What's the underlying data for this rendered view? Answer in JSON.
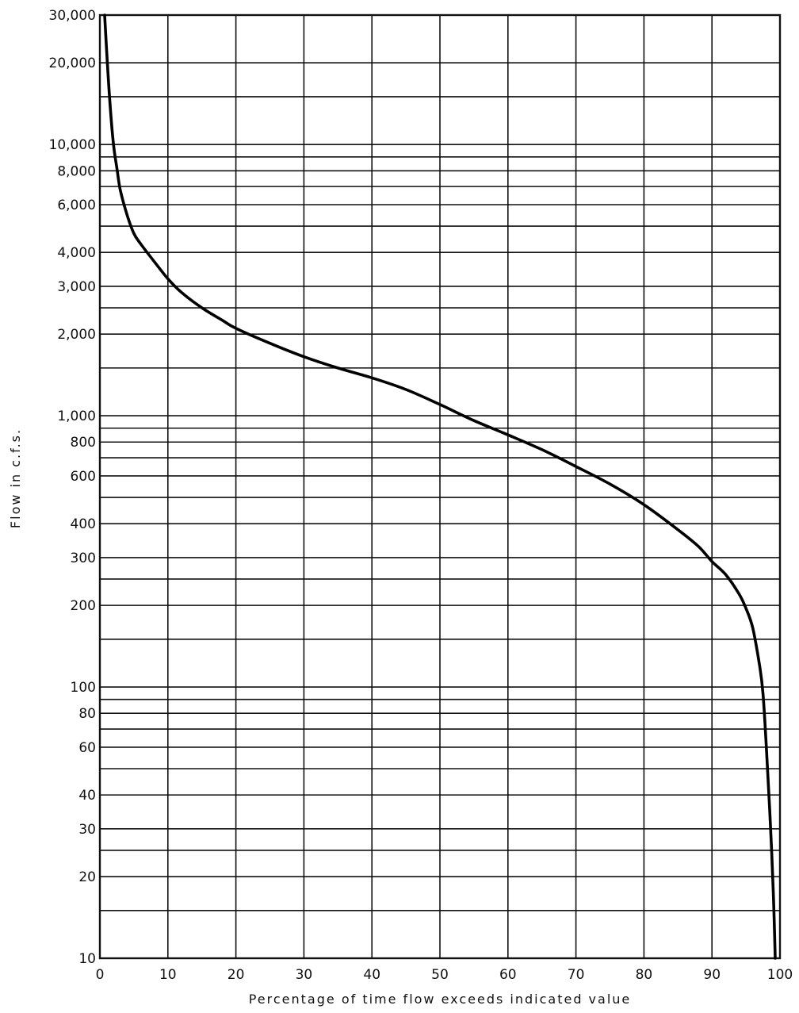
{
  "chart_data": {
    "type": "line",
    "title": "",
    "xlabel": "Percentage of time flow exceeds indicated value",
    "ylabel": "Flow in c.f.s.",
    "x_scale": "linear",
    "y_scale": "log",
    "xlim": [
      0,
      100
    ],
    "ylim": [
      10,
      30000
    ],
    "grid": true,
    "x_ticks": [
      0,
      10,
      20,
      30,
      40,
      50,
      60,
      70,
      80,
      90,
      100
    ],
    "x_tick_labels": [
      "0",
      "10",
      "20",
      "30",
      "40",
      "50",
      "60",
      "70",
      "80",
      "90",
      "100"
    ],
    "y_ticks": [
      10,
      20,
      30,
      40,
      60,
      80,
      100,
      200,
      300,
      400,
      600,
      800,
      1000,
      2000,
      3000,
      4000,
      6000,
      8000,
      10000,
      20000,
      30000
    ],
    "y_tick_labels": [
      "10",
      "20",
      "30",
      "40",
      "60",
      "80",
      "100",
      "200",
      "300",
      "400",
      "600",
      "800",
      "1,000",
      "2,000",
      "3,000",
      "4,000",
      "6,000",
      "8,000",
      "10,000",
      "20,000",
      "30,000"
    ],
    "y_gridlines": [
      10,
      15,
      20,
      25,
      30,
      40,
      50,
      60,
      70,
      80,
      90,
      100,
      150,
      200,
      250,
      300,
      400,
      500,
      600,
      700,
      800,
      900,
      1000,
      1500,
      2000,
      2500,
      3000,
      4000,
      5000,
      6000,
      7000,
      8000,
      9000,
      10000,
      15000,
      20000,
      30000
    ],
    "series": [
      {
        "x": [
          0.7,
          1.0,
          1.5,
          2.0,
          2.5,
          3.0,
          4.0,
          5.0,
          6.0,
          8.0,
          10,
          12,
          15,
          18,
          20,
          25,
          30,
          35,
          40,
          45,
          50,
          55,
          60,
          65,
          70,
          75,
          80,
          85,
          88,
          90,
          92,
          94,
          95,
          96,
          97,
          97.5,
          98,
          98.5,
          99,
          99.3
        ],
        "y": [
          30000,
          22000,
          14000,
          10000,
          8200,
          6800,
          5500,
          4700,
          4300,
          3700,
          3200,
          2850,
          2500,
          2250,
          2100,
          1850,
          1650,
          1500,
          1380,
          1250,
          1100,
          960,
          850,
          750,
          650,
          560,
          470,
          380,
          330,
          290,
          260,
          220,
          195,
          165,
          120,
          95,
          60,
          35,
          18,
          10
        ]
      }
    ]
  }
}
